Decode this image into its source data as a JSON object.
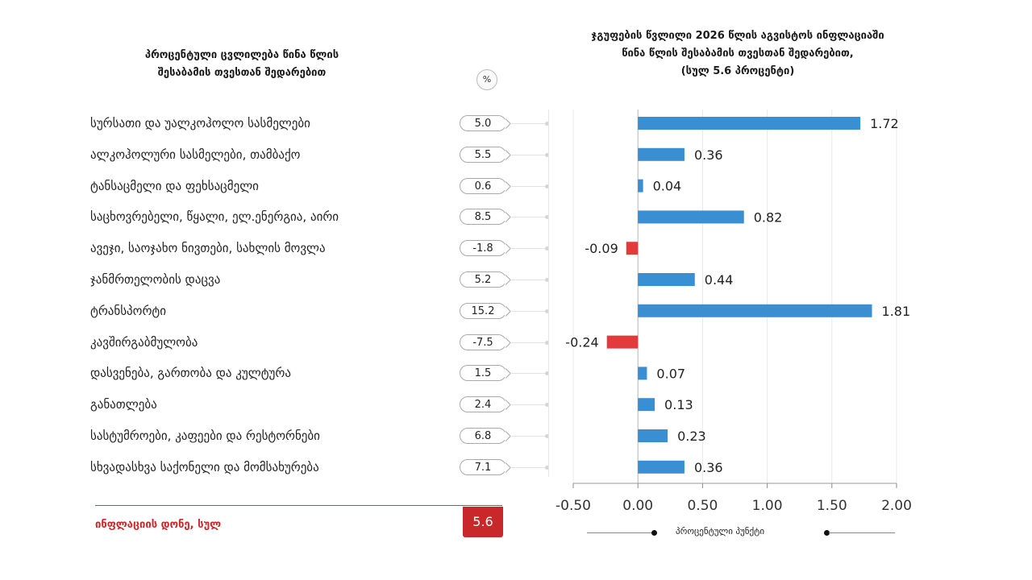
{
  "left_panel": {
    "title_line1": "პროცენტული ცვლილება წინა წლის",
    "title_line2": "შესაბამის თვესთან შედარებით",
    "unit_badge": "%"
  },
  "chart_data": {
    "type": "bar",
    "orientation": "horizontal",
    "title_line1": "ჯგუფების წვლილი 2026 წლის აგვისტოს ინფლაციაში",
    "title_line2": "წინა წლის შესაბამის თვესთან შედარებით,",
    "title_line3": "(სულ 5.6 პროცენტი)",
    "xlabel": "პროცენტული პუნქტი",
    "xlim": [
      -0.5,
      2.0
    ],
    "xticks": [
      "-0.50",
      "0.00",
      "0.50",
      "1.00",
      "1.50",
      "2.00"
    ],
    "grid": true,
    "colors": {
      "positive": "#3a8fd2",
      "negative": "#e23b3b"
    },
    "categories": [
      "სურსათი და უალკოჰოლო სასმელები",
      "ალკოჰოლური სასმელები, თამბაქო",
      "ტანსაცმელი და ფეხსაცმელი",
      "საცხოვრებელი, წყალი, ელ.ენერგია, აირი",
      "ავეჯი, საოჯახო ნივთები, სახლის მოვლა",
      "ჯანმრთელობის დაცვა",
      "ტრანსპორტი",
      "კავშირგაბმულობა",
      "დასვენება, გართობა და კულტურა",
      "განათლება",
      "სასტუმროები, კაფეები და რესტორნები",
      "სხვადასხვა საქონელი და მომსახურება"
    ],
    "values": [
      1.72,
      0.36,
      0.04,
      0.82,
      -0.09,
      0.44,
      1.81,
      -0.24,
      0.07,
      0.13,
      0.23,
      0.36
    ],
    "value_labels": [
      "1.72",
      "0.36",
      "0.04",
      "0.82",
      "-0.09",
      "0.44",
      "1.81",
      "-0.24",
      "0.07",
      "0.13",
      "0.23",
      "0.36"
    ],
    "yoy_change": [
      "5.0",
      "5.5",
      "0.6",
      "8.5",
      "-1.8",
      "5.2",
      "15.2",
      "-7.5",
      "1.5",
      "2.4",
      "6.8",
      "7.1"
    ]
  },
  "total": {
    "label": "ინფლაციის დონე, სულ",
    "value": "5.6"
  }
}
